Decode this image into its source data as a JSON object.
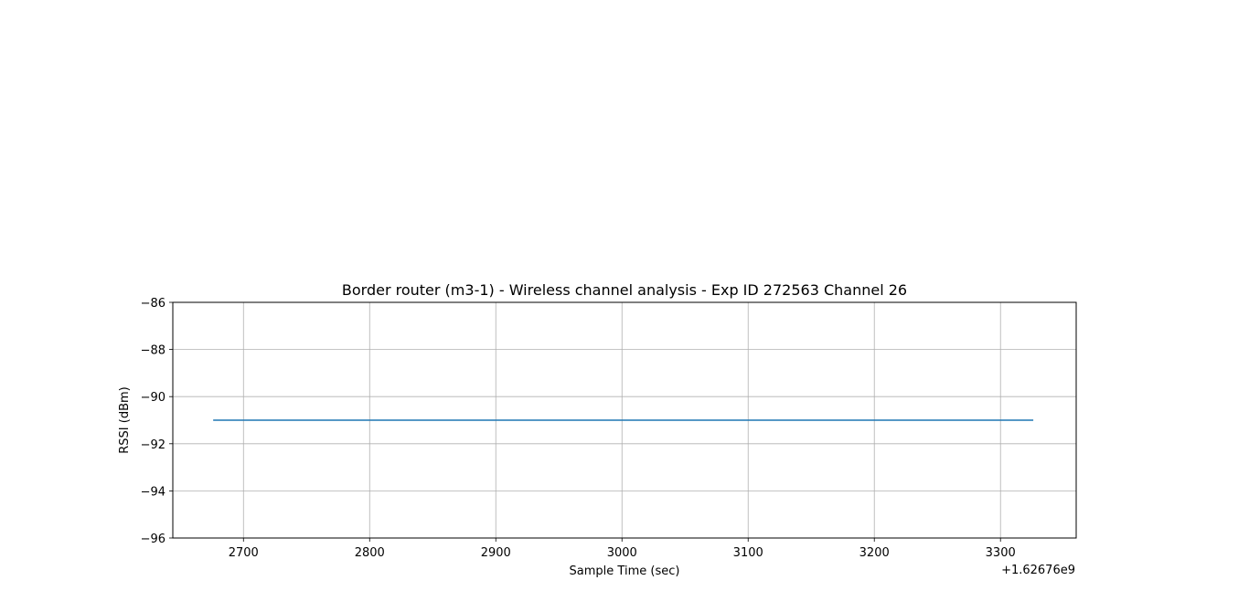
{
  "chart_data": {
    "type": "line",
    "title": "Border router (m3-1) - Wireless channel analysis - Exp ID 272563 Channel 26",
    "xlabel": "Sample Time (sec)",
    "ylabel": "RSSI (dBm)",
    "x_offset_label": "+1.62676e9",
    "xlim": [
      2644,
      3360
    ],
    "ylim": [
      -96,
      -86
    ],
    "xticks": [
      2700,
      2800,
      2900,
      3000,
      3100,
      3200,
      3300
    ],
    "yticks": [
      -86,
      -88,
      -90,
      -92,
      -94,
      -96
    ],
    "ytick_labels": [
      "−86",
      "−88",
      "−90",
      "−92",
      "−94",
      "−96"
    ],
    "grid": true,
    "series": [
      {
        "x": [
          2676,
          3326
        ],
        "y": [
          -91,
          -91
        ],
        "color": "#1f77b4"
      }
    ]
  }
}
